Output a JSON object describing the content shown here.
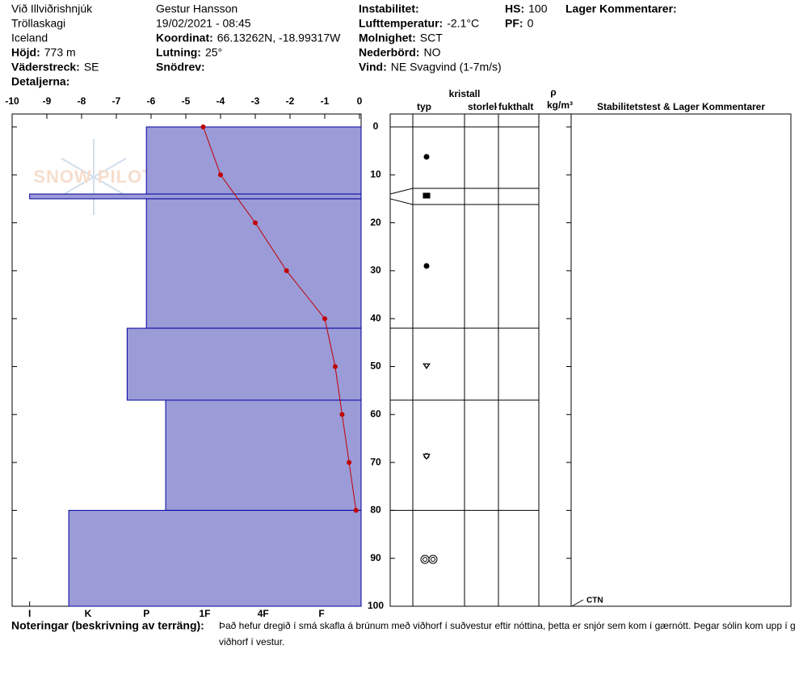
{
  "header": [
    [
      {
        "value": "Við Illviðrishnjúk"
      },
      {
        "value": "Tröllaskagi"
      },
      {
        "value": "Iceland"
      },
      {
        "label": "Höjd:",
        "value": "773 m"
      },
      {
        "label": "Väderstreck:",
        "value": "SE"
      },
      {
        "label": "Detaljerna:"
      }
    ],
    [
      {
        "value": "Gestur Hansson"
      },
      {
        "value": "19/02/2021 - 08:45"
      },
      {
        "label": "Koordinat:",
        "value": "66.13262N, -18.99317W"
      },
      {
        "label": "Lutning:",
        "value": "25°"
      },
      {
        "label": "Snödrev:"
      }
    ],
    [
      {
        "label": "Instabilitet:"
      },
      {
        "label": "Lufttemperatur:",
        "value": "-2.1°C"
      },
      {
        "label": "Molnighet:",
        "value": "SCT"
      },
      {
        "label": "Nederbörd:",
        "value": "NO"
      },
      {
        "label": "Vind:",
        "value": "NE Svagvind (1-7m/s)"
      }
    ],
    [
      {
        "label": "HS:",
        "value": "100"
      },
      {
        "label": "PF:",
        "value": "0"
      }
    ],
    [
      {
        "label": "Lager Kommentarer:"
      }
    ]
  ],
  "watermark": "SNOW PILOT",
  "chart_data": {
    "type": "snow-profile",
    "ylim": [
      0,
      100
    ],
    "yticks": [
      0,
      10,
      20,
      30,
      40,
      50,
      60,
      70,
      80,
      90,
      100
    ],
    "xlim": [
      -10,
      0
    ],
    "xticks": [
      -10,
      -9,
      -8,
      -7,
      -6,
      -5,
      -4,
      -3,
      -2,
      -1,
      0
    ],
    "hardness_lim": [
      0.35,
      6.3
    ],
    "hardness_ticks": [
      {
        "value": 6,
        "label": "I"
      },
      {
        "value": 5,
        "label": "K"
      },
      {
        "value": 4,
        "label": "P"
      },
      {
        "value": 3,
        "label": "1F"
      },
      {
        "value": 2,
        "label": "4F"
      },
      {
        "value": 1,
        "label": "F"
      }
    ],
    "layer_color": "#9b9bd8",
    "layer_edge": "#0000a0",
    "temperature_color": "#c00000",
    "layers": [
      {
        "top": 0,
        "bottom": 14,
        "hardness": 4
      },
      {
        "top": 14,
        "bottom": 15,
        "hardness": 6
      },
      {
        "top": 15,
        "bottom": 42,
        "hardness": 4
      },
      {
        "top": 42,
        "bottom": 57,
        "hardness": 4.33
      },
      {
        "top": 57,
        "bottom": 80,
        "hardness": 3.67
      },
      {
        "top": 80,
        "bottom": 100,
        "hardness": 5.33
      }
    ],
    "temperature": {
      "depth": [
        0,
        10,
        20,
        30,
        40,
        50,
        60,
        70,
        80
      ],
      "values": [
        -4.5,
        -4,
        -3,
        -2.1,
        -1,
        -0.7,
        -0.5,
        -0.3,
        -0.1
      ]
    },
    "table_headers": {
      "crystal": "kristall",
      "type": "typ",
      "size": "storlek",
      "moisture": "fukthalt",
      "density_symbol": "ρ",
      "density_unit": "kg/m³",
      "comments": "Stabilitetstest & Lager Kommentarer"
    },
    "stability_tests": [
      {
        "depth": 100,
        "result": "CTN"
      }
    ]
  },
  "notes": {
    "label": "Noteringar (beskrivning av terräng):",
    "lines": [
      "Það hefur dregið í smá skafla á brúnum með viðhorf í suðvestur eftir nóttina, þetta er snjór sem kom í gærnótt. Þegar sólin kom upp í g",
      "viðhorf í vestur."
    ]
  }
}
